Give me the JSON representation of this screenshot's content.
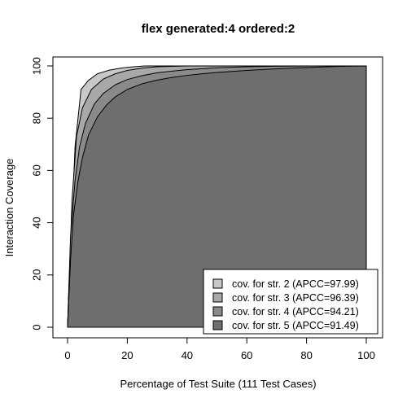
{
  "chart_data": {
    "type": "area",
    "title": "flex generated:4 ordered:2",
    "xlabel": "Percentage of Test Suite (111 Test Cases)",
    "ylabel": "Interaction Coverage",
    "xlim": [
      0,
      100
    ],
    "ylim": [
      0,
      100
    ],
    "xticks": [
      0,
      20,
      40,
      60,
      80,
      100
    ],
    "yticks": [
      0,
      20,
      40,
      60,
      80,
      100
    ],
    "grid": false,
    "legend_position": "bottom-right",
    "series": [
      {
        "name": "cov. for str. 2 (APCC=97.99)",
        "color": "#c8c8c8",
        "x": [
          0,
          2.5,
          4.5,
          7,
          10,
          14,
          18,
          22,
          26,
          35,
          50,
          100
        ],
        "y": [
          0,
          69,
          91,
          94.5,
          97,
          98.4,
          99.2,
          99.7,
          100,
          100,
          100,
          100
        ]
      },
      {
        "name": "cov. for str. 3 (APCC=96.39)",
        "color": "#a8a8a8",
        "x": [
          0,
          1.5,
          3,
          5,
          8,
          12,
          16,
          20,
          25,
          30,
          40,
          50,
          60,
          70,
          100
        ],
        "y": [
          0,
          49,
          73,
          84,
          91,
          95,
          97,
          98.3,
          99.2,
          99.7,
          100,
          100,
          100,
          100,
          100
        ]
      },
      {
        "name": "cov. for str. 4 (APCC=94.21)",
        "color": "#8a8a8a",
        "x": [
          0,
          1,
          2.5,
          4,
          6,
          9,
          12,
          16,
          20,
          25,
          30,
          35,
          40,
          50,
          60,
          70,
          80,
          90,
          100
        ],
        "y": [
          0,
          35,
          56,
          69,
          78,
          85.5,
          89.5,
          92.8,
          94.8,
          96.3,
          97.4,
          98,
          98.6,
          99.3,
          99.7,
          99.9,
          100,
          100,
          100
        ]
      },
      {
        "name": "cov. for str. 5 (APCC=91.49)",
        "color": "#6e6e6e",
        "x": [
          0,
          1,
          2,
          3.5,
          5,
          7,
          10,
          13,
          16,
          20,
          25,
          30,
          35,
          40,
          45,
          50,
          60,
          70,
          80,
          90,
          100
        ],
        "y": [
          0,
          26,
          43,
          56,
          65,
          73.5,
          80.5,
          85,
          88.2,
          91,
          93.2,
          94.6,
          95.6,
          96.4,
          97,
          97.5,
          98.3,
          98.9,
          99.4,
          99.8,
          100
        ]
      }
    ]
  }
}
